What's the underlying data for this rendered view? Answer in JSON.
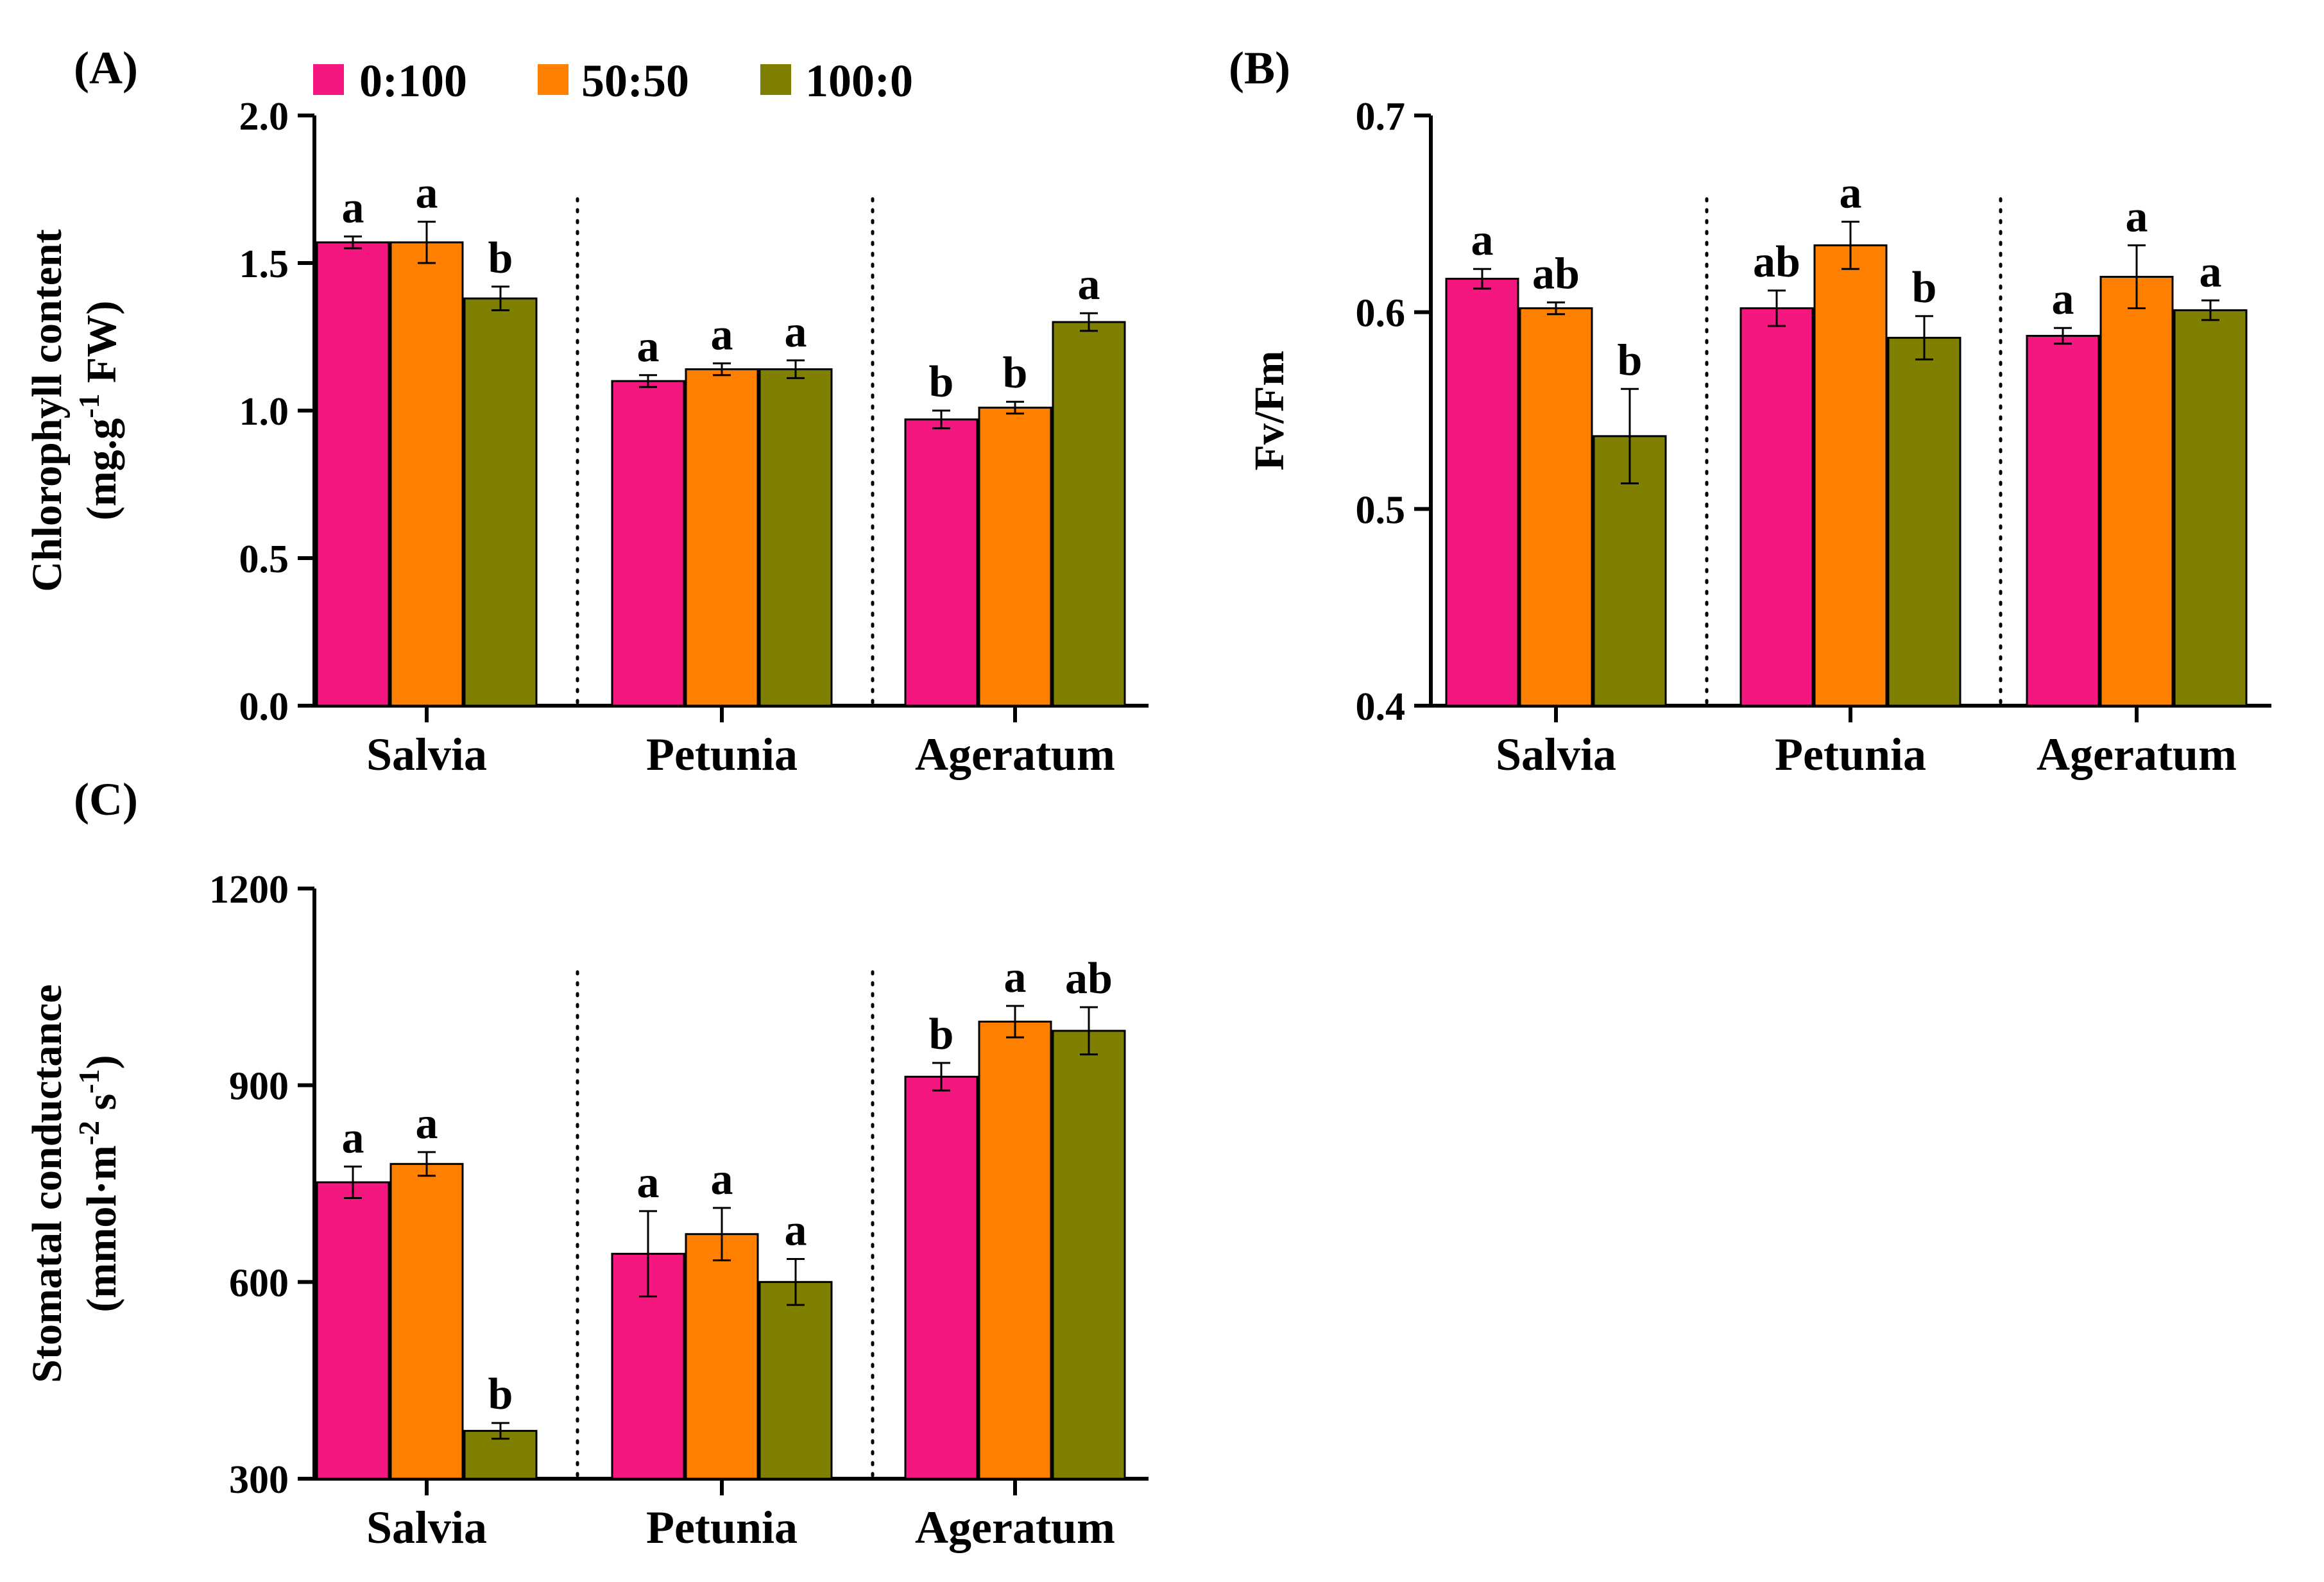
{
  "legend": [
    {
      "label": "0:100",
      "color": "#f5177f"
    },
    {
      "label": "50:50",
      "color": "#ff8000"
    },
    {
      "label": "100:0",
      "color": "#7f7f00"
    }
  ],
  "chart_data": [
    {
      "type": "bar",
      "panel": "(A)",
      "categories": [
        "Salvia",
        "Petunia",
        "Ageratum"
      ],
      "ylabel_line1": "Chlorophyll content",
      "ylabel_line2": "(mg.g",
      "ylabel_sup": "-1",
      "ylabel_end": " FW)",
      "ylim": [
        0,
        2.0
      ],
      "yticks": [
        "0.0",
        "0.5",
        "1.0",
        "1.5",
        "2.0"
      ],
      "ytick_values": [
        0,
        0.5,
        1.0,
        1.5,
        2.0
      ],
      "series": [
        {
          "name": "0:100",
          "values": [
            1.57,
            1.1,
            0.97
          ],
          "errors": [
            0.02,
            0.02,
            0.03
          ],
          "letters": [
            "a",
            "a",
            "b"
          ]
        },
        {
          "name": "50:50",
          "values": [
            1.57,
            1.14,
            1.01
          ],
          "errors": [
            0.07,
            0.02,
            0.02
          ],
          "letters": [
            "a",
            "a",
            "b"
          ]
        },
        {
          "name": "100:0",
          "values": [
            1.38,
            1.14,
            1.3
          ],
          "errors": [
            0.04,
            0.03,
            0.03
          ],
          "letters": [
            "b",
            "a",
            "a"
          ]
        }
      ]
    },
    {
      "type": "bar",
      "panel": "(B)",
      "categories": [
        "Salvia",
        "Petunia",
        "Ageratum"
      ],
      "ylabel_line1": "Fv/Fm",
      "ylim": [
        0.4,
        0.7
      ],
      "yticks": [
        "0.4",
        "0.5",
        "0.6",
        "0.7"
      ],
      "ytick_values": [
        0.4,
        0.5,
        0.6,
        0.7
      ],
      "series": [
        {
          "name": "0:100",
          "values": [
            0.617,
            0.602,
            0.588
          ],
          "errors": [
            0.005,
            0.009,
            0.004
          ],
          "letters": [
            "a",
            "ab",
            "a"
          ]
        },
        {
          "name": "50:50",
          "values": [
            0.602,
            0.634,
            0.618
          ],
          "errors": [
            0.003,
            0.012,
            0.016
          ],
          "letters": [
            "ab",
            "a",
            "a"
          ]
        },
        {
          "name": "100:0",
          "values": [
            0.537,
            0.587,
            0.601
          ],
          "errors": [
            0.024,
            0.011,
            0.005
          ],
          "letters": [
            "b",
            "b",
            "a"
          ]
        }
      ]
    },
    {
      "type": "bar",
      "panel": "(C)",
      "categories": [
        "Salvia",
        "Petunia",
        "Ageratum"
      ],
      "ylabel_line1": "Stomatal conductance",
      "ylabel_line2": "(mmol·m",
      "ylabel_sup": "-2",
      "ylabel_mid": " s",
      "ylabel_sup2": "-1",
      "ylabel_end": ")",
      "ylim": [
        300,
        1200
      ],
      "yticks": [
        "300",
        "600",
        "900",
        "1200"
      ],
      "ytick_values": [
        300,
        600,
        900,
        1200
      ],
      "series": [
        {
          "name": "0:100",
          "values": [
            752,
            643,
            913
          ],
          "errors": [
            24,
            65,
            21
          ],
          "letters": [
            "a",
            "a",
            "b"
          ]
        },
        {
          "name": "50:50",
          "values": [
            780,
            673,
            997
          ],
          "errors": [
            18,
            40,
            24
          ],
          "letters": [
            "a",
            "a",
            "a"
          ]
        },
        {
          "name": "100:0",
          "values": [
            373,
            600,
            983
          ],
          "errors": [
            12,
            35,
            36
          ],
          "letters": [
            "b",
            "a",
            "ab"
          ]
        }
      ]
    }
  ]
}
